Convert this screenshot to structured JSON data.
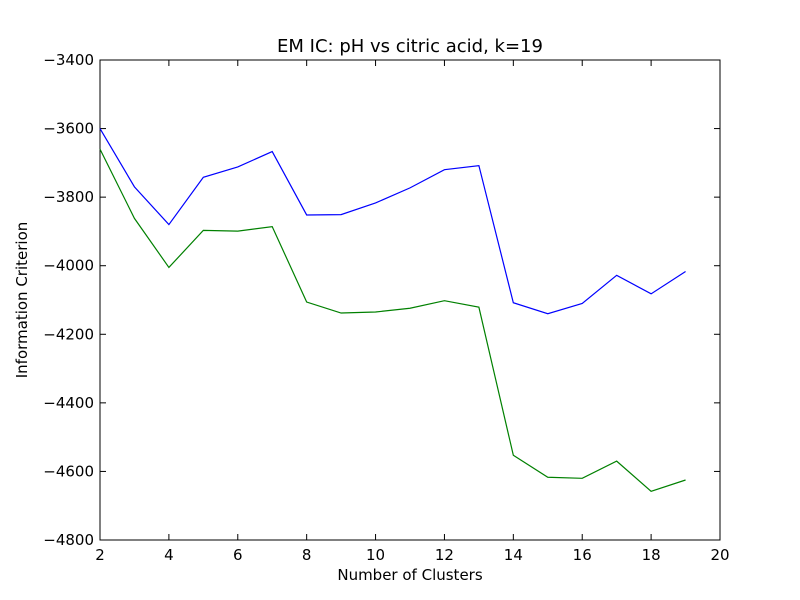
{
  "chart_data": {
    "type": "line",
    "title": "EM IC: pH vs citric acid, k=19",
    "xlabel": "Number of Clusters",
    "ylabel": "Information Criterion",
    "xlim": [
      2,
      20
    ],
    "ylim": [
      -4800,
      -3400
    ],
    "xticks": [
      2,
      4,
      6,
      8,
      10,
      12,
      14,
      16,
      18,
      20
    ],
    "yticks": [
      -3400,
      -3600,
      -3800,
      -4000,
      -4200,
      -4400,
      -4600,
      -4800
    ],
    "grid": false,
    "legend": "none",
    "x": [
      2,
      3,
      4,
      5,
      6,
      7,
      8,
      9,
      10,
      11,
      12,
      13,
      14,
      15,
      16,
      17,
      18,
      19
    ],
    "series": [
      {
        "color": "#0000ff",
        "values": [
          -3600,
          -3770,
          -3880,
          -3742,
          -3712,
          -3667,
          -3852,
          -3851,
          -3817,
          -3773,
          -3720,
          -3708,
          -4108,
          -4140,
          -4110,
          -4028,
          -4082,
          -4017
        ]
      },
      {
        "color": "#008000",
        "values": [
          -3660,
          -3862,
          -4005,
          -3897,
          -3899,
          -3886,
          -4106,
          -4138,
          -4135,
          -4124,
          -4102,
          -4121,
          -4553,
          -4617,
          -4620,
          -4570,
          -4658,
          -4625
        ]
      }
    ]
  }
}
